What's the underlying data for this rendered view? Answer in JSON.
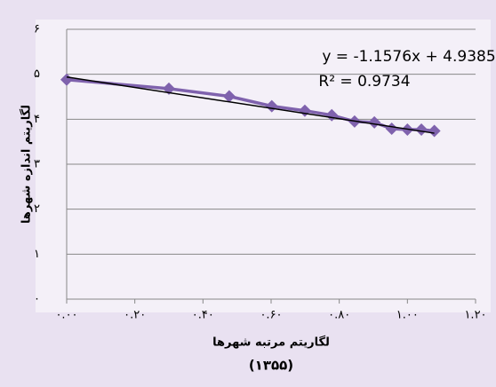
{
  "chart_data": {
    "type": "scatter",
    "x_label": "لگاریتم مرتبه شهرها",
    "x_sublabel": "(۱۳۵۵)",
    "y_label": "لگاریتم اندازه شهرها",
    "series": [
      {
        "color": "#7f62ad",
        "x": [
          0,
          0.3,
          0.477,
          0.602,
          0.699,
          0.778,
          0.845,
          0.903,
          0.954,
          1.0,
          1.041,
          1.079
        ],
        "values": [
          4.88,
          4.68,
          4.51,
          4.29,
          4.19,
          4.09,
          3.95,
          3.93,
          3.79,
          3.77,
          3.77,
          3.74
        ]
      }
    ],
    "trendline": {
      "slope": -1.1576,
      "intercept": 4.9385,
      "color": "#000000",
      "equation": "y = -1.1576x + 4.9385",
      "r2_label": "R² = 0.9734"
    },
    "xlim": [
      0,
      1.2
    ],
    "xticks": [
      {
        "value": 0,
        "label": "۰.۰۰"
      },
      {
        "value": 0.2,
        "label": "۰.۲۰"
      },
      {
        "value": 0.4,
        "label": "۰.۴۰"
      },
      {
        "value": 0.6,
        "label": "۰.۶۰"
      },
      {
        "value": 0.8,
        "label": "۰.۸۰"
      },
      {
        "value": 1.0,
        "label": "۱.۰۰"
      },
      {
        "value": 1.2,
        "label": "۱.۲۰"
      }
    ],
    "ylim": [
      0,
      6
    ],
    "yticks": [
      {
        "value": 0,
        "label": "۰"
      },
      {
        "value": 1,
        "label": "۱"
      },
      {
        "value": 2,
        "label": "۲"
      },
      {
        "value": 3,
        "label": "۳"
      },
      {
        "value": 4,
        "label": "۴"
      },
      {
        "value": 5,
        "label": "۵"
      },
      {
        "value": 6,
        "label": "۶"
      }
    ],
    "grid": true
  }
}
